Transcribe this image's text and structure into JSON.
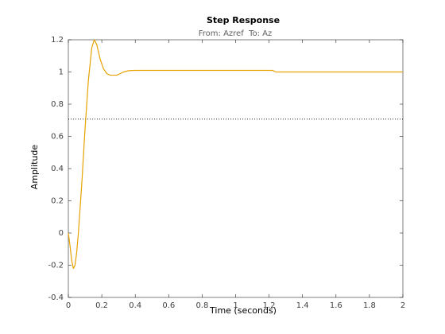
{
  "chart_data": {
    "type": "line",
    "title": "Step Response",
    "subtitle": "From: Azref  To: Az",
    "xlabel": "Time (seconds)",
    "ylabel": "Amplitude",
    "x": [
      0,
      0.01,
      0.02,
      0.03,
      0.04,
      0.05,
      0.06,
      0.08,
      0.1,
      0.12,
      0.14,
      0.155,
      0.17,
      0.19,
      0.21,
      0.23,
      0.25,
      0.27,
      0.29,
      0.31,
      0.33,
      0.36,
      0.4,
      0.6,
      1.0,
      1.22,
      1.24,
      1.6,
      2.0
    ],
    "values": [
      0,
      -0.08,
      -0.17,
      -0.22,
      -0.2,
      -0.12,
      0.0,
      0.3,
      0.65,
      0.95,
      1.15,
      1.2,
      1.17,
      1.08,
      1.02,
      0.99,
      0.98,
      0.98,
      0.98,
      0.99,
      1.0,
      1.008,
      1.01,
      1.01,
      1.01,
      1.01,
      1.0,
      1.0,
      1.0
    ],
    "color": "#e6a200",
    "reference_line": 0.707,
    "xlim": [
      0,
      2
    ],
    "xticks": [
      0,
      0.2,
      0.4,
      0.6,
      0.8,
      1,
      1.2,
      1.4,
      1.6,
      1.8,
      2
    ],
    "ylim": [
      -0.4,
      1.2
    ],
    "yticks": [
      -0.4,
      -0.2,
      0,
      0.2,
      0.4,
      0.6,
      0.8,
      1,
      1.2
    ],
    "grid": false
  }
}
